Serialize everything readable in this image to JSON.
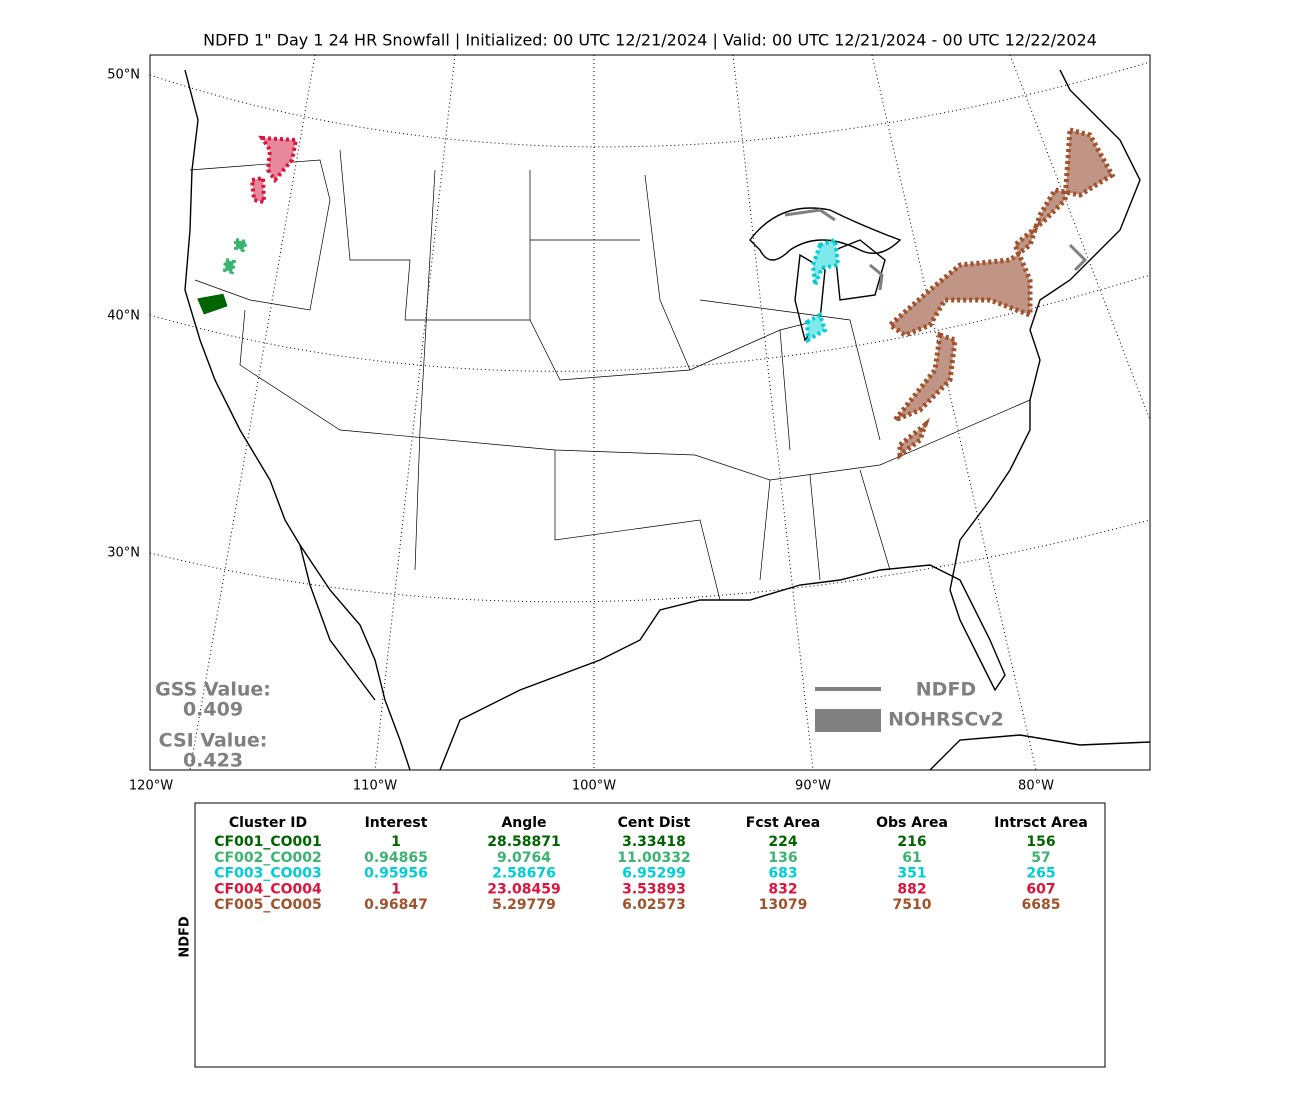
{
  "title": "NDFD 1\" Day 1 24 HR Snowfall | Initialized: 00 UTC 12/21/2024 | Valid: 00 UTC 12/21/2024 - 00 UTC 12/22/2024",
  "map": {
    "lat_labels": [
      "50°N",
      "40°N",
      "30°N"
    ],
    "lon_labels": [
      "120°W",
      "110°W",
      "100°W",
      "90°W",
      "80°W"
    ],
    "scores": [
      {
        "label": "GSS Value:",
        "value": "0.409"
      },
      {
        "label": "CSI Value:",
        "value": "0.423"
      }
    ],
    "legend": [
      "NDFD",
      "NOHRSCv2"
    ]
  },
  "table": {
    "side_label": "NDFD",
    "columns": [
      "Cluster ID",
      "Interest",
      "Angle",
      "Cent Dist",
      "Fcst Area",
      "Obs Area",
      "Intrsct Area"
    ],
    "rows": [
      {
        "color": "#006400",
        "cells": [
          "CF001_CO001",
          "1",
          "28.58871",
          "3.33418",
          "224",
          "216",
          "156"
        ]
      },
      {
        "color": "#3cb371",
        "cells": [
          "CF002_CO002",
          "0.94865",
          "9.0764",
          "11.00332",
          "136",
          "61",
          "57"
        ]
      },
      {
        "color": "#00ced1",
        "cells": [
          "CF003_CO003",
          "0.95956",
          "2.58676",
          "6.95299",
          "683",
          "351",
          "265"
        ]
      },
      {
        "color": "#dc143c",
        "cells": [
          "CF004_CO004",
          "1",
          "23.08459",
          "3.53893",
          "832",
          "882",
          "607"
        ]
      },
      {
        "color": "#a0522d",
        "cells": [
          "CF005_CO005",
          "0.96847",
          "5.29779",
          "6.02573",
          "13079",
          "7510",
          "6685"
        ]
      }
    ]
  }
}
